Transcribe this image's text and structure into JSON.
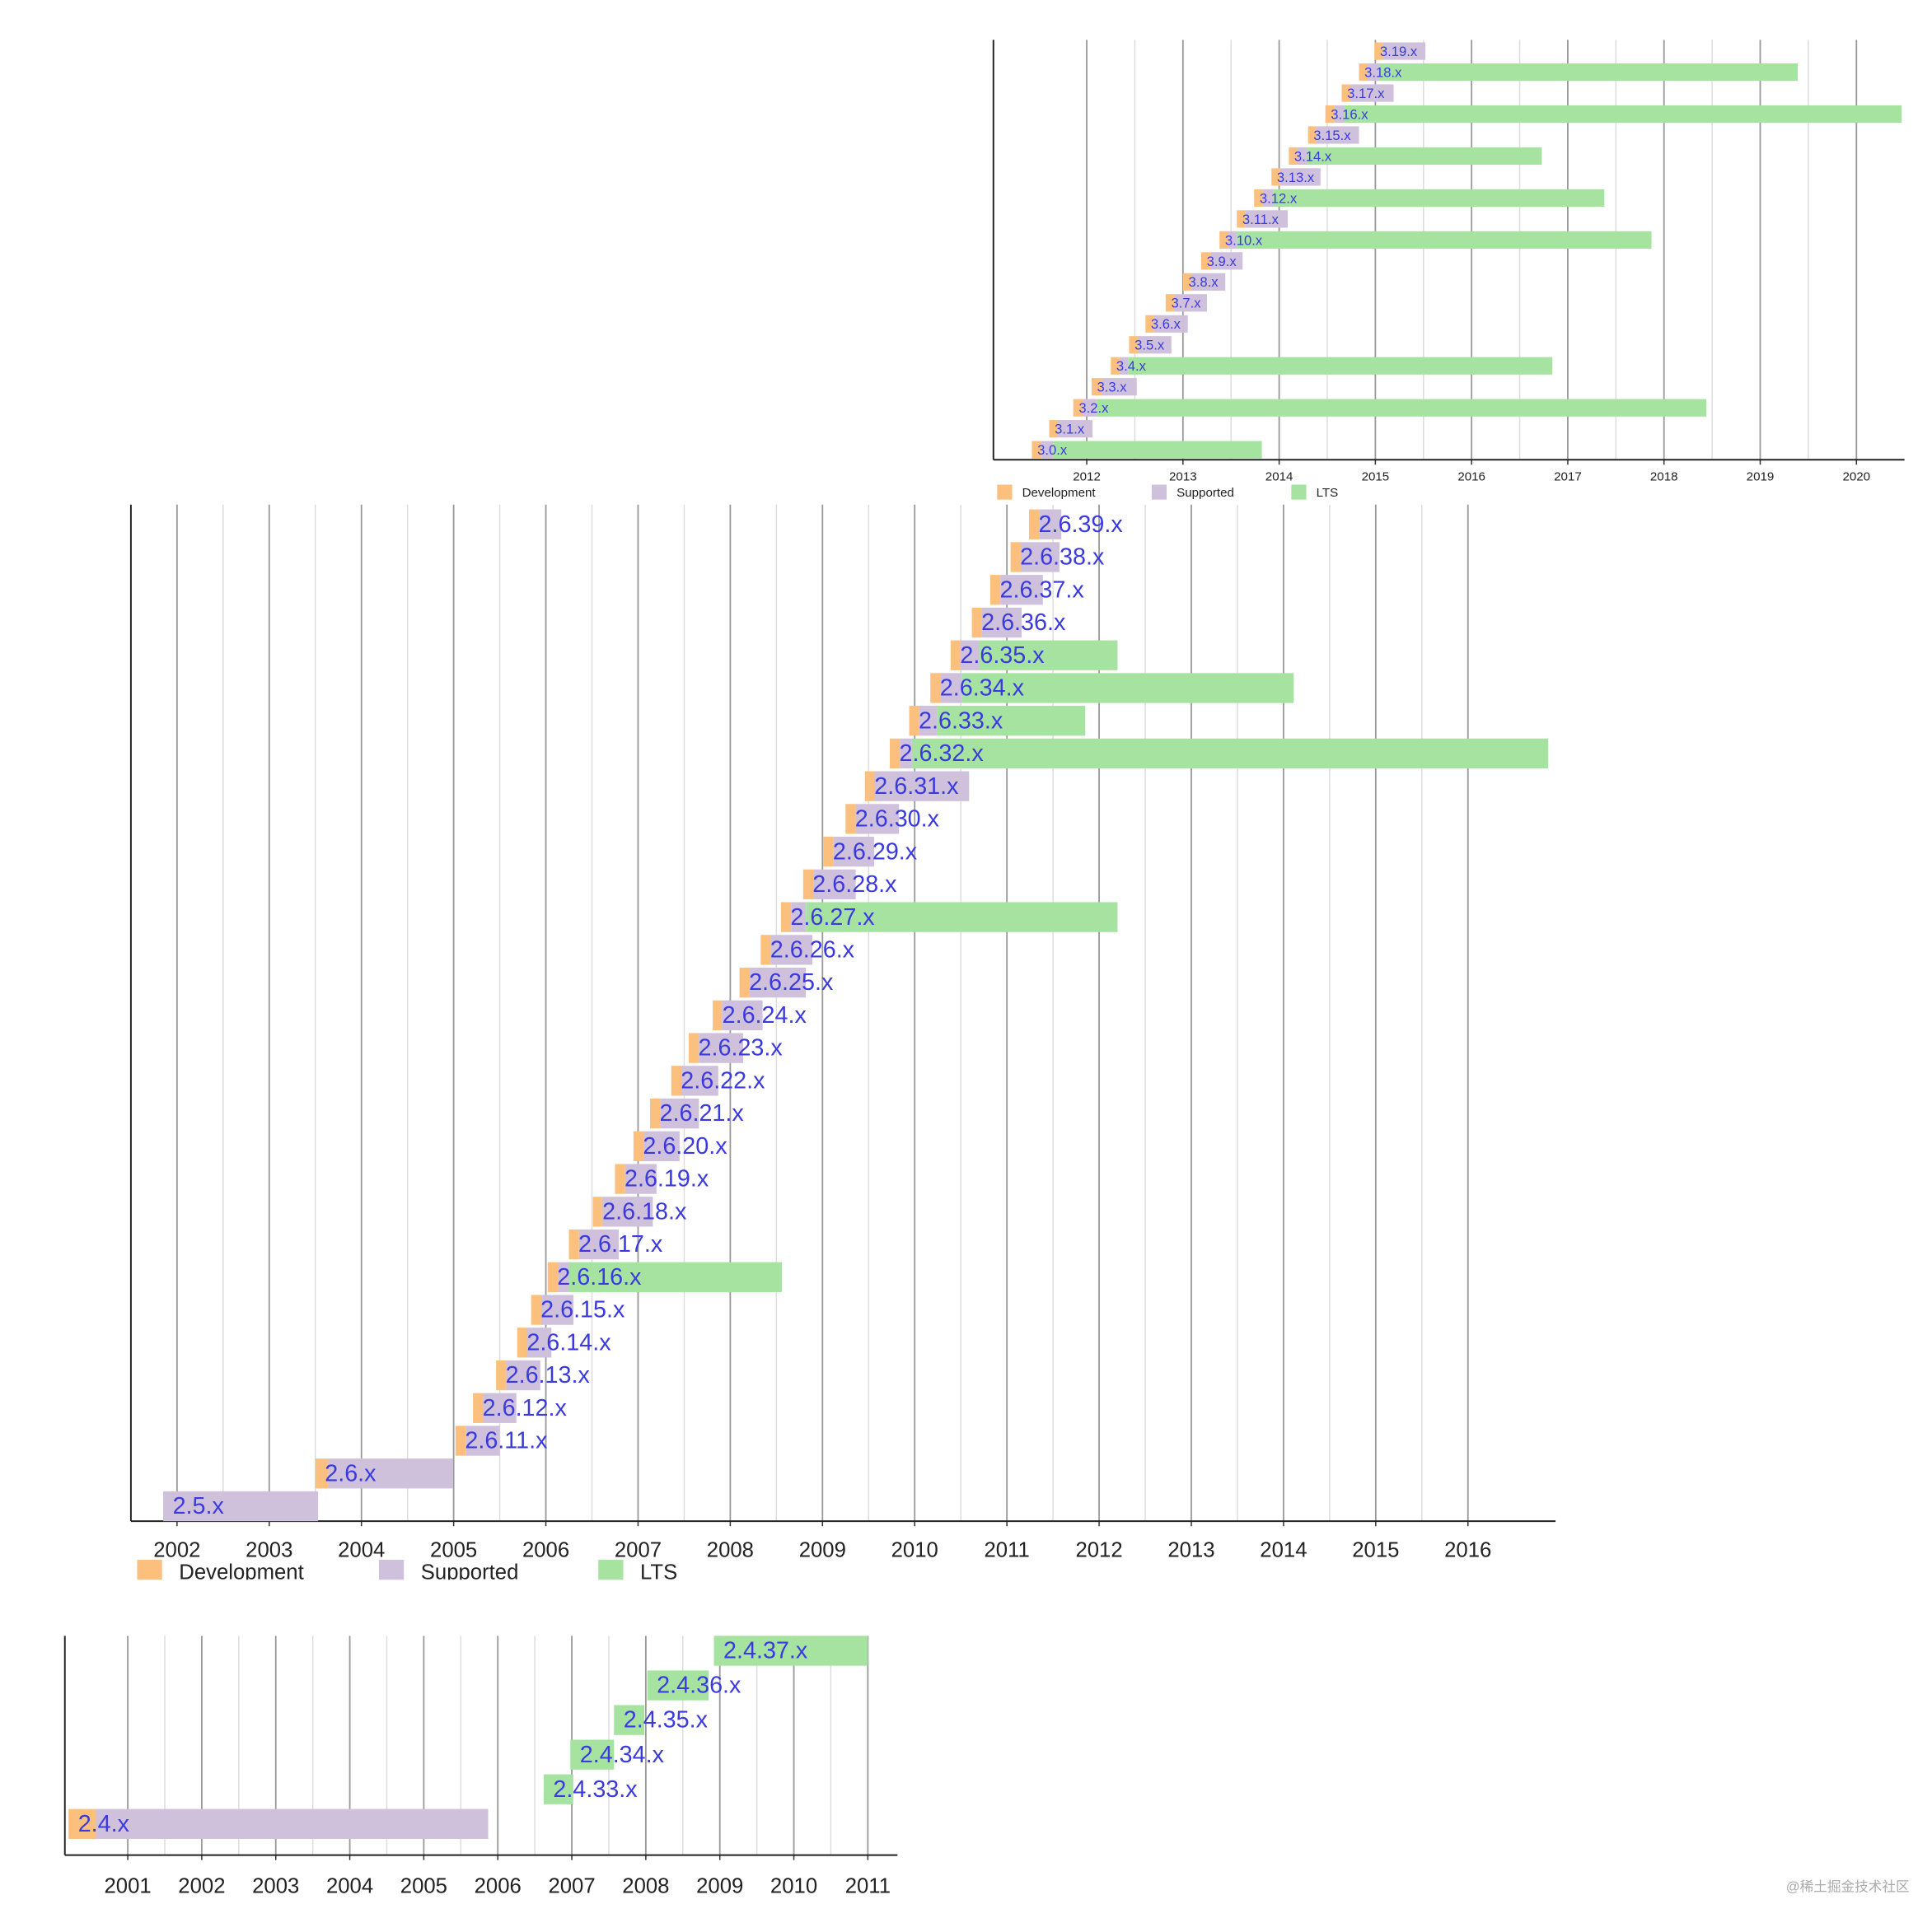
{
  "chart_data": [
    {
      "type": "gantt",
      "categories": [
        "3.0.x",
        "3.1.x",
        "3.2.x",
        "3.3.x",
        "3.4.x",
        "3.5.x",
        "3.6.x",
        "3.7.x",
        "3.8.x",
        "3.9.x",
        "3.10.x",
        "3.11.x",
        "3.12.x",
        "3.13.x",
        "3.14.x",
        "3.15.x",
        "3.16.x",
        "3.17.x",
        "3.18.x",
        "3.19.x"
      ],
      "series": [
        {
          "name": "Development",
          "color": "#fbbf7e",
          "values": [
            [
              2011.43,
              2011.53
            ],
            [
              2011.61,
              2011.7
            ],
            [
              2011.86,
              2011.96
            ],
            [
              2012.05,
              2012.16
            ],
            [
              2012.25,
              2012.34
            ],
            [
              2012.44,
              2012.53
            ],
            [
              2012.61,
              2012.7
            ],
            [
              2012.82,
              2012.91
            ],
            [
              2013.0,
              2013.09
            ],
            [
              2013.19,
              2013.29
            ],
            [
              2013.38,
              2013.47
            ],
            [
              2013.56,
              2013.65
            ],
            [
              2013.74,
              2013.83
            ],
            [
              2013.92,
              2014.01
            ],
            [
              2014.1,
              2014.19
            ],
            [
              2014.3,
              2014.39
            ],
            [
              2014.48,
              2014.57
            ],
            [
              2014.65,
              2014.74
            ],
            [
              2014.83,
              2014.92
            ],
            [
              2014.99,
              2015.08
            ]
          ]
        },
        {
          "name": "Supported",
          "color": "#cfc0dc",
          "values": [
            [
              2011.53,
              2011.65
            ],
            [
              2011.7,
              2012.06
            ],
            [
              2011.96,
              2012.1
            ],
            [
              2012.16,
              2012.52
            ],
            [
              2012.34,
              2012.43
            ],
            [
              2012.53,
              2012.88
            ],
            [
              2012.7,
              2013.05
            ],
            [
              2012.91,
              2013.25
            ],
            [
              2013.09,
              2013.44
            ],
            [
              2013.29,
              2013.62
            ],
            [
              2013.47,
              2013.56
            ],
            [
              2013.65,
              2014.09
            ],
            [
              2013.83,
              2013.94
            ],
            [
              2014.01,
              2014.43
            ],
            [
              2014.19,
              2014.29
            ],
            [
              2014.39,
              2014.83
            ],
            [
              2014.57,
              2014.68
            ],
            [
              2014.74,
              2015.19
            ],
            [
              2014.92,
              2015.04
            ],
            [
              2015.08,
              2015.52
            ]
          ]
        },
        {
          "name": "LTS",
          "color": "#a6e3a1",
          "values": [
            [
              2011.65,
              2013.82
            ],
            null,
            [
              2012.1,
              2018.44
            ],
            null,
            [
              2012.43,
              2016.84
            ],
            null,
            null,
            null,
            null,
            null,
            [
              2013.56,
              2017.87
            ],
            null,
            [
              2013.94,
              2017.38
            ],
            null,
            [
              2014.29,
              2016.73
            ],
            null,
            [
              2014.68,
              2020.47
            ],
            null,
            [
              2015.04,
              2019.39
            ],
            null
          ]
        }
      ],
      "xlim": [
        2011.03,
        2020.5
      ],
      "xticks": [
        2012,
        2013,
        2014,
        2015,
        2016,
        2017,
        2018,
        2019,
        2020
      ],
      "grid": true,
      "minor_grid": true,
      "legend": true
    },
    {
      "type": "gantt",
      "categories": [
        "2.5.x",
        "2.6.x",
        "2.6.11.x",
        "2.6.12.x",
        "2.6.13.x",
        "2.6.14.x",
        "2.6.15.x",
        "2.6.16.x",
        "2.6.17.x",
        "2.6.18.x",
        "2.6.19.x",
        "2.6.20.x",
        "2.6.21.x",
        "2.6.22.x",
        "2.6.23.x",
        "2.6.24.x",
        "2.6.25.x",
        "2.6.26.x",
        "2.6.27.x",
        "2.6.28.x",
        "2.6.29.x",
        "2.6.30.x",
        "2.6.31.x",
        "2.6.32.x",
        "2.6.33.x",
        "2.6.34.x",
        "2.6.35.x",
        "2.6.36.x",
        "2.6.37.x",
        "2.6.38.x",
        "2.6.39.x"
      ],
      "series": [
        {
          "name": "Development",
          "color": "#fbbf7e",
          "values": [
            null,
            [
              2003.5,
              2003.64
            ],
            [
              2005.02,
              2005.13
            ],
            [
              2005.21,
              2005.32
            ],
            [
              2005.46,
              2005.57
            ],
            [
              2005.69,
              2005.79
            ],
            [
              2005.84,
              2005.95
            ],
            [
              2006.02,
              2006.13
            ],
            [
              2006.25,
              2006.36
            ],
            [
              2006.51,
              2006.61
            ],
            [
              2006.75,
              2006.86
            ],
            [
              2006.95,
              2007.06
            ],
            [
              2007.13,
              2007.24
            ],
            [
              2007.36,
              2007.47
            ],
            [
              2007.55,
              2007.66
            ],
            [
              2007.81,
              2007.91
            ],
            [
              2008.1,
              2008.21
            ],
            [
              2008.33,
              2008.44
            ],
            [
              2008.55,
              2008.66
            ],
            [
              2008.79,
              2008.9
            ],
            [
              2009.01,
              2009.12
            ],
            [
              2009.25,
              2009.36
            ],
            [
              2009.46,
              2009.56
            ],
            [
              2009.73,
              2009.84
            ],
            [
              2009.94,
              2010.05
            ],
            [
              2010.17,
              2010.28
            ],
            [
              2010.39,
              2010.49
            ],
            [
              2010.62,
              2010.73
            ],
            [
              2010.82,
              2010.93
            ],
            [
              2011.04,
              2011.15
            ],
            [
              2011.24,
              2011.35
            ]
          ]
        },
        {
          "name": "Supported",
          "color": "#cfc0dc",
          "values": [
            [
              2001.85,
              2003.53
            ],
            [
              2003.64,
              2004.99
            ],
            [
              2005.13,
              2005.5
            ],
            [
              2005.32,
              2005.68
            ],
            [
              2005.57,
              2005.94
            ],
            [
              2005.79,
              2006.06
            ],
            [
              2005.95,
              2006.3
            ],
            [
              2006.13,
              2006.25
            ],
            [
              2006.36,
              2006.79
            ],
            [
              2006.61,
              2007.16
            ],
            [
              2006.86,
              2007.2
            ],
            [
              2007.06,
              2007.45
            ],
            [
              2007.24,
              2007.66
            ],
            [
              2007.47,
              2007.87
            ],
            [
              2007.66,
              2008.14
            ],
            [
              2007.91,
              2008.35
            ],
            [
              2008.21,
              2008.82
            ],
            [
              2008.44,
              2008.89
            ],
            [
              2008.66,
              2008.82
            ],
            [
              2008.9,
              2009.36
            ],
            [
              2009.12,
              2009.56
            ],
            [
              2009.36,
              2009.83
            ],
            [
              2009.56,
              2010.59
            ],
            [
              2009.84,
              2009.97
            ],
            [
              2010.05,
              2010.24
            ],
            [
              2010.28,
              2010.51
            ],
            [
              2010.49,
              2010.7
            ],
            [
              2010.73,
              2011.16
            ],
            [
              2010.93,
              2011.39
            ],
            [
              2011.15,
              2011.57
            ],
            [
              2011.35,
              2011.59
            ]
          ]
        },
        {
          "name": "LTS",
          "color": "#a6e3a1",
          "values": [
            null,
            null,
            null,
            null,
            null,
            null,
            null,
            [
              2006.25,
              2008.56
            ],
            null,
            null,
            null,
            null,
            null,
            null,
            null,
            null,
            null,
            null,
            [
              2008.82,
              2012.2
            ],
            null,
            null,
            null,
            null,
            [
              2009.97,
              2016.87
            ],
            [
              2010.24,
              2011.85
            ],
            [
              2010.51,
              2014.11
            ],
            [
              2010.7,
              2012.2
            ],
            null,
            null,
            null,
            null
          ]
        }
      ],
      "xlim": [
        2001.5,
        2016.95
      ],
      "xticks": [
        2002,
        2003,
        2004,
        2005,
        2006,
        2007,
        2008,
        2009,
        2010,
        2011,
        2012,
        2013,
        2014,
        2015,
        2016
      ],
      "grid": true,
      "minor_grid": true,
      "legend": true
    },
    {
      "type": "gantt",
      "categories": [
        "2.4.x",
        "2.4.33.x",
        "2.4.34.x",
        "2.4.35.x",
        "2.4.36.x",
        "2.4.37.x"
      ],
      "series": [
        {
          "name": "Development",
          "color": "#fbbf7e",
          "values": [
            [
              2000.2,
              2000.57
            ],
            null,
            null,
            null,
            null,
            null
          ]
        },
        {
          "name": "Supported",
          "color": "#cfc0dc",
          "values": [
            [
              2000.57,
              2005.87
            ],
            null,
            null,
            null,
            null,
            null
          ]
        },
        {
          "name": "LTS",
          "color": "#a6e3a1",
          "values": [
            null,
            [
              2006.62,
              2007.02
            ],
            [
              2006.98,
              2007.57
            ],
            [
              2007.57,
              2007.98
            ],
            [
              2008.02,
              2008.85
            ],
            [
              2008.92,
              2011.0
            ]
          ]
        }
      ],
      "xlim": [
        2000.15,
        2011.4
      ],
      "xticks": [
        2001,
        2002,
        2003,
        2004,
        2005,
        2006,
        2007,
        2008,
        2009,
        2010,
        2011
      ],
      "grid": true,
      "minor_grid": true,
      "legend": false
    }
  ],
  "watermark": "@稀土掘金技术社区"
}
